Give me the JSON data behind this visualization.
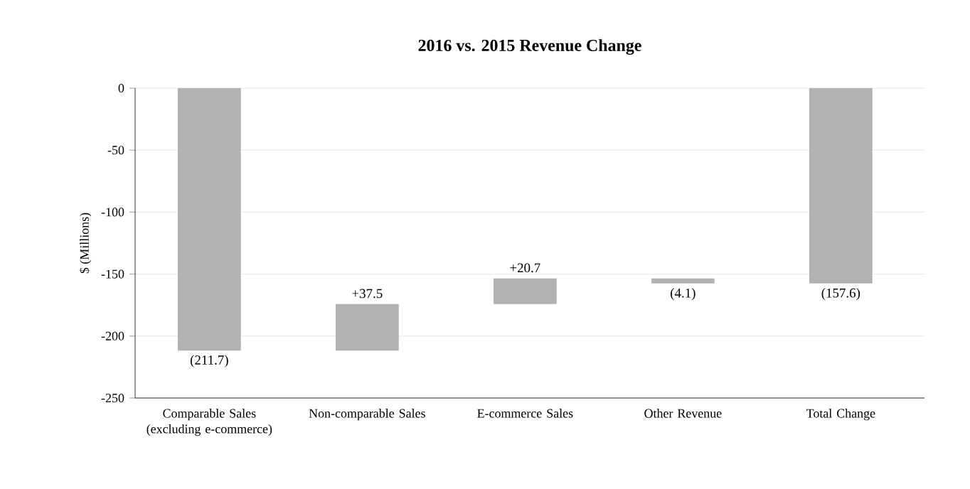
{
  "chart_data": {
    "type": "bar",
    "title": "2016 vs. 2015 Revenue Change",
    "ylabel": "$ (Millions)",
    "categories": [
      "Comparable Sales (excluding e-commerce)",
      "Non-comparable Sales",
      "E-commerce Sales",
      "Other Revenue",
      "Total Change"
    ],
    "values": [
      -211.7,
      37.5,
      20.7,
      -4.1,
      -157.6
    ],
    "base": [
      0,
      -211.7,
      -174.2,
      -153.5,
      0
    ],
    "value_labels": [
      "(211.7)",
      "+37.5",
      "+20.7",
      "(4.1)",
      "(157.6)"
    ],
    "color": "#b2b2b2",
    "ylim": [
      -250,
      0
    ],
    "yticks": [
      -250,
      -200,
      -150,
      -100,
      -50,
      0
    ],
    "grid": "y"
  }
}
